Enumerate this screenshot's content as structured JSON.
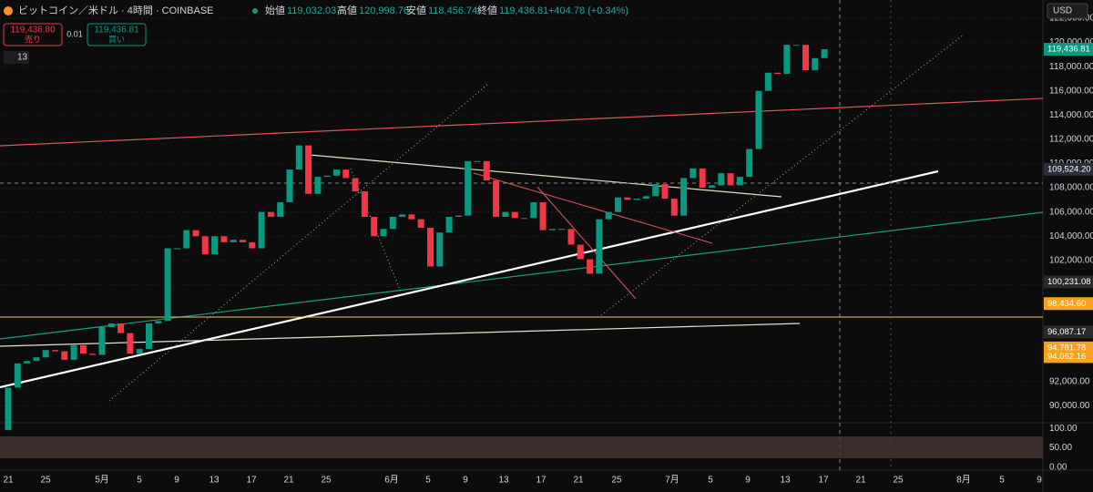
{
  "header": {
    "symbol": "ビットコイン／米ドル · 4時間 · COINBASE",
    "open_label": "始値",
    "open": "119,032.03",
    "high_label": "高値",
    "high": "120,998.76",
    "low_label": "安値",
    "low": "118,456.74",
    "close_label": "終値",
    "close": "119,436.81",
    "change": "+404.78 (+0.34%)"
  },
  "order": {
    "sell_price": "119,436.80",
    "sell": "売り",
    "spread": "0.01",
    "buy_price": "119,436.81",
    "buy": "買い"
  },
  "indicator_count": "13",
  "currency": "USD",
  "chart_data": {
    "type": "candlestick",
    "open": [
      88000,
      91500,
      93500,
      93700,
      94000,
      94600,
      94500,
      93800,
      95000,
      94300,
      94200,
      96500,
      96800,
      96000,
      94300,
      94700,
      96800,
      97000,
      103000,
      103000,
      104500,
      104000,
      102500,
      104000,
      103500,
      103700,
      103500,
      103000,
      106000,
      105600,
      106800,
      109500,
      111500,
      107500,
      108900,
      109000,
      109500,
      108800,
      107700,
      105600,
      104000,
      104600,
      105600,
      105800,
      105400,
      104700,
      101500,
      104300,
      105600,
      105700,
      110200,
      110200,
      108600,
      105600,
      106000,
      105500,
      105500,
      106800,
      104500,
      104600,
      104600,
      103300,
      102100,
      100900,
      105400,
      106000,
      107200,
      107000,
      107100,
      107300,
      108300,
      107100,
      105700,
      108800,
      109600,
      108000,
      108200,
      109200,
      108200,
      108900,
      111200,
      116000,
      117500,
      117400,
      119800,
      119800,
      117700,
      118700
    ],
    "close": [
      91500,
      93500,
      93700,
      94000,
      94600,
      94500,
      93800,
      95000,
      94300,
      94200,
      96500,
      96800,
      96000,
      94300,
      94700,
      96800,
      97000,
      103000,
      103000,
      104500,
      104000,
      102500,
      104000,
      103500,
      103700,
      103500,
      103000,
      106000,
      105600,
      106800,
      109500,
      111500,
      107500,
      108900,
      109000,
      109500,
      108800,
      107700,
      105600,
      104000,
      104600,
      105600,
      105800,
      105400,
      104700,
      101500,
      104300,
      105600,
      105700,
      110200,
      110200,
      108600,
      105600,
      106000,
      105500,
      105500,
      106800,
      104500,
      104600,
      104600,
      103300,
      102100,
      100900,
      105400,
      106000,
      107200,
      107000,
      107100,
      107300,
      108300,
      107100,
      105700,
      108800,
      109600,
      108000,
      108200,
      109200,
      108200,
      108900,
      111200,
      116000,
      117500,
      117400,
      119800,
      119800,
      117700,
      118700,
      119436.81
    ],
    "up_color": "#089981",
    "down_color": "#f23645",
    "ylim": [
      88600,
      123500
    ],
    "yticks": [
      {
        "value": 122000,
        "label": "122,000.00"
      },
      {
        "value": 120000,
        "label": "120,000.00"
      },
      {
        "value": 118000,
        "label": "118,000.00"
      },
      {
        "value": 116000,
        "label": "116,000.00"
      },
      {
        "value": 114000,
        "label": "114,000.00"
      },
      {
        "value": 112000,
        "label": "112,000.00"
      },
      {
        "value": 110000,
        "label": "110,000.00"
      },
      {
        "value": 108000,
        "label": "108,000.00"
      },
      {
        "value": 106000,
        "label": "106,000.00"
      },
      {
        "value": 104000,
        "label": "104,000.00"
      },
      {
        "value": 102000,
        "label": "102,000.00"
      },
      {
        "value": 100000,
        "label": "100,000.00"
      },
      {
        "value": 92000,
        "label": "92,000.00"
      },
      {
        "value": 90000,
        "label": "90,000.00"
      }
    ],
    "price_badges": [
      {
        "value": 119436.81,
        "label": "119,436.81",
        "color": "#089981"
      },
      {
        "value": 109524.2,
        "label": "109,524.20",
        "color": "#2a2e39"
      },
      {
        "value": 100231.08,
        "label": "100,231.08",
        "color": "#2a2a2a"
      },
      {
        "value": 98434.6,
        "label": "98,434.60",
        "color": "#f7a21b"
      },
      {
        "value": 96087.17,
        "label": "96,087.17",
        "color": "#2a2a2a"
      },
      {
        "value": 94781.78,
        "label": "94,781.78",
        "color": "#f7a21b"
      },
      {
        "value": 94062.16,
        "label": "94,062.16",
        "color": "#f7a21b"
      }
    ],
    "osc_ylim": [
      -8,
      108
    ],
    "osc_ticks": [
      {
        "value": 100,
        "label": "100.00"
      },
      {
        "value": 50,
        "label": "50.00"
      },
      {
        "value": 0,
        "label": "0.00"
      }
    ],
    "x_labels": [
      "21",
      "25",
      "5月",
      "5",
      "9",
      "13",
      "17",
      "21",
      "25",
      "6月",
      "5",
      "9",
      "13",
      "17",
      "21",
      "25",
      "7月",
      "5",
      "9",
      "13",
      "17",
      "21",
      "25",
      "8月",
      "5",
      "9"
    ]
  }
}
